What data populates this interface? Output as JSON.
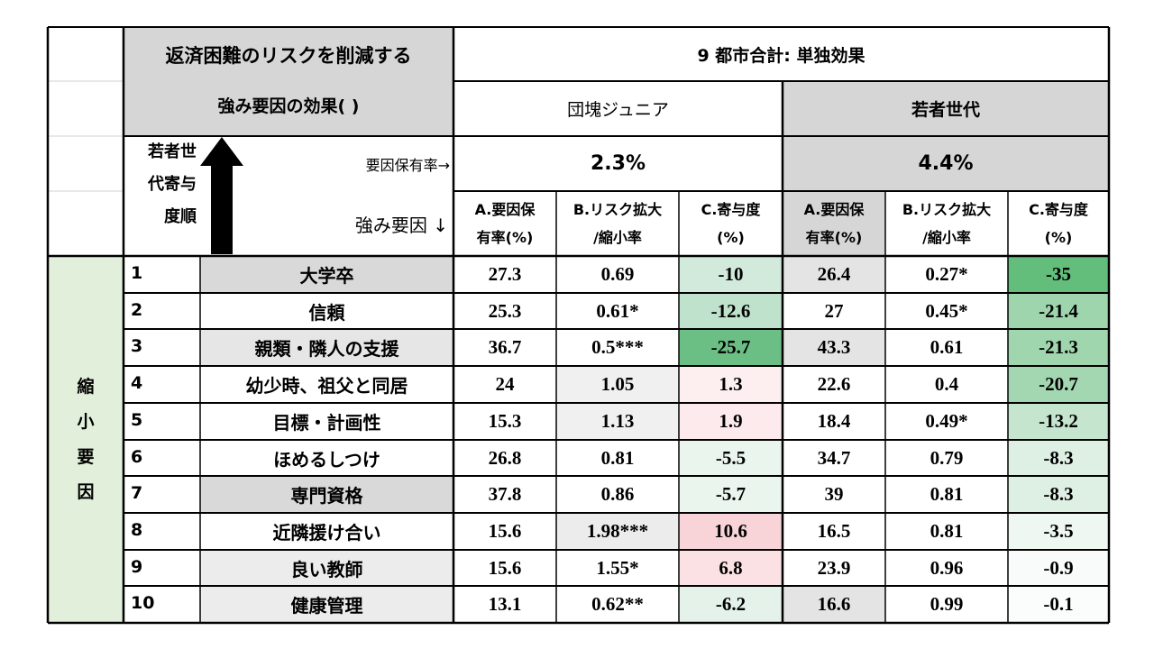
{
  "header": {
    "title_line1": "返済困難のリスクを削減する",
    "title_line2": "強み要因の効果( )",
    "summary_title": "9 都市合計: 単独効果",
    "group1_name": "団塊ジュニア",
    "group2_name": "若者世代",
    "group1_rate": "2.3%",
    "group2_rate": "4.4%",
    "rank_label_lines": [
      "若者世",
      "代寄与",
      "度順"
    ],
    "factor_rate_label": "要因保有率→",
    "factor_label": "強み要因 ↓",
    "col_a": [
      "A.要因保",
      "有率(%)"
    ],
    "col_b": [
      "B.リスク拡大",
      "/縮小率"
    ],
    "col_c": [
      "C.寄与度",
      "(%)"
    ]
  },
  "side_label": [
    "縮",
    "小",
    "要",
    "因"
  ],
  "rows": [
    {
      "rank": "1",
      "factor": "大学卒",
      "g1_a": "27.3",
      "g1_b": "0.69",
      "g1_c": "-10",
      "g2_a": "26.4",
      "g2_b": "0.27*",
      "g2_c": "-35"
    },
    {
      "rank": "2",
      "factor": "信頼",
      "g1_a": "25.3",
      "g1_b": "0.61*",
      "g1_c": "-12.6",
      "g2_a": "27",
      "g2_b": "0.45*",
      "g2_c": "-21.4"
    },
    {
      "rank": "3",
      "factor": "親類・隣人の支援",
      "g1_a": "36.7",
      "g1_b": "0.5***",
      "g1_c": "-25.7",
      "g2_a": "43.3",
      "g2_b": "0.61",
      "g2_c": "-21.3"
    },
    {
      "rank": "4",
      "factor": "幼少時、祖父と同居",
      "g1_a": "24",
      "g1_b": "1.05",
      "g1_c": "1.3",
      "g2_a": "22.6",
      "g2_b": "0.4",
      "g2_c": "-20.7"
    },
    {
      "rank": "5",
      "factor": "目標・計画性",
      "g1_a": "15.3",
      "g1_b": "1.13",
      "g1_c": "1.9",
      "g2_a": "18.4",
      "g2_b": "0.49*",
      "g2_c": "-13.2"
    },
    {
      "rank": "6",
      "factor": "ほめるしつけ",
      "g1_a": "26.8",
      "g1_b": "0.81",
      "g1_c": "-5.5",
      "g2_a": "34.7",
      "g2_b": "0.79",
      "g2_c": "-8.3"
    },
    {
      "rank": "7",
      "factor": "専門資格",
      "g1_a": "37.8",
      "g1_b": "0.86",
      "g1_c": "-5.7",
      "g2_a": "39",
      "g2_b": "0.81",
      "g2_c": "-8.3"
    },
    {
      "rank": "8",
      "factor": "近隣援け合い",
      "g1_a": "15.6",
      "g1_b": "1.98***",
      "g1_c": "10.6",
      "g2_a": "16.5",
      "g2_b": "0.81",
      "g2_c": "-3.5"
    },
    {
      "rank": "9",
      "factor": "良い教師",
      "g1_a": "15.6",
      "g1_b": "1.55*",
      "g1_c": "6.8",
      "g2_a": "23.9",
      "g2_b": "0.96",
      "g2_c": "-0.9"
    },
    {
      "rank": "10",
      "factor": "健康管理",
      "g1_a": "13.1",
      "g1_b": "0.62**",
      "g1_c": "-6.2",
      "g2_a": "16.6",
      "g2_b": "0.99",
      "g2_c": "-0.1"
    }
  ],
  "colors": {
    "header_gray": "#d6d6d6",
    "light_gray": "#e8e8e8",
    "side_green": "#e2efda",
    "g1_c_bg": [
      "#d1eadb",
      "#bfe2cc",
      "#6bbf84",
      "#fdeef0",
      "#fdeaed",
      "#eaf5ee",
      "#e9f5ed",
      "#f8d3d8",
      "#fbe0e4",
      "#e4f2e9"
    ],
    "g2_c_bg": [
      "#63be7b",
      "#9ed5ad",
      "#a0d6ae",
      "#a3d7b1",
      "#c5e5ce",
      "#deefe3",
      "#deefe3",
      "#eef7f1",
      "#f9fbfb",
      "#fbfcfc"
    ],
    "factor_bg": [
      "#d9d9d9",
      "#ffffff",
      "#e6e6e6",
      "#ffffff",
      "#ffffff",
      "#ffffff",
      "#d9d9d9",
      "#ffffff",
      "#ececec",
      "#ececec"
    ],
    "g1_b_bg": [
      "#ffffff",
      "#ffffff",
      "#ffffff",
      "#f0f0f0",
      "#f0f0f0",
      "#ffffff",
      "#ffffff",
      "#ececec",
      "#ffffff",
      "#ffffff"
    ],
    "g2_a_bg": [
      "#e4e4e4",
      "#ffffff",
      "#e4e4e4",
      "#ffffff",
      "#ffffff",
      "#ffffff",
      "#ffffff",
      "#ffffff",
      "#ffffff",
      "#e4e4e4"
    ]
  }
}
